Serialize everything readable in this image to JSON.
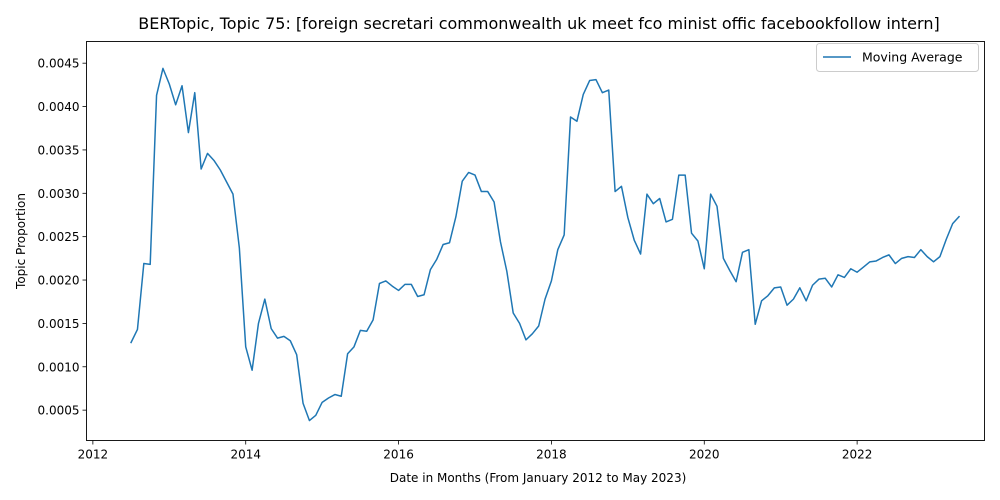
{
  "chart_data": {
    "type": "line",
    "title": "BERTopic, Topic 75: [foreign secretari commonwealth uk meet fco minist offic facebookfollow intern]",
    "xlabel": "Date in Months (From January 2012 to May 2023)",
    "ylabel": "Topic Proportion",
    "xlim": [
      "2011-12-01",
      "2023-09-01"
    ],
    "ylim": [
      0.00015,
      0.00475
    ],
    "x_ticks": [
      "2012",
      "2014",
      "2016",
      "2018",
      "2020",
      "2022"
    ],
    "y_ticks": [
      "0.0005",
      "0.0010",
      "0.0015",
      "0.0020",
      "0.0025",
      "0.0030",
      "0.0035",
      "0.0040",
      "0.0045"
    ],
    "legend": {
      "position": "top-right",
      "entries": [
        "Moving Average"
      ]
    },
    "grid": false,
    "colors": {
      "line": "#1f77b4"
    },
    "series": [
      {
        "name": "Moving Average",
        "x": [
          "2012-07",
          "2012-08",
          "2012-09",
          "2012-10",
          "2012-11",
          "2012-12",
          "2013-01",
          "2013-02",
          "2013-03",
          "2013-04",
          "2013-05",
          "2013-06",
          "2013-07",
          "2013-08",
          "2013-09",
          "2013-10",
          "2013-11",
          "2013-12",
          "2014-01",
          "2014-02",
          "2014-03",
          "2014-04",
          "2014-05",
          "2014-06",
          "2014-07",
          "2014-08",
          "2014-09",
          "2014-10",
          "2014-11",
          "2014-12",
          "2015-01",
          "2015-02",
          "2015-03",
          "2015-04",
          "2015-05",
          "2015-06",
          "2015-07",
          "2015-08",
          "2015-09",
          "2015-10",
          "2015-11",
          "2015-12",
          "2016-01",
          "2016-02",
          "2016-03",
          "2016-04",
          "2016-05",
          "2016-06",
          "2016-07",
          "2016-08",
          "2016-09",
          "2016-10",
          "2016-11",
          "2016-12",
          "2017-01",
          "2017-02",
          "2017-03",
          "2017-04",
          "2017-05",
          "2017-06",
          "2017-07",
          "2017-08",
          "2017-09",
          "2017-10",
          "2017-11",
          "2017-12",
          "2018-01",
          "2018-02",
          "2018-03",
          "2018-04",
          "2018-05",
          "2018-06",
          "2018-07",
          "2018-08",
          "2018-09",
          "2018-10",
          "2018-11",
          "2018-12",
          "2019-01",
          "2019-02",
          "2019-03",
          "2019-04",
          "2019-05",
          "2019-06",
          "2019-07",
          "2019-08",
          "2019-09",
          "2019-10",
          "2019-11",
          "2019-12",
          "2020-01",
          "2020-02",
          "2020-03",
          "2020-04",
          "2020-05",
          "2020-06",
          "2020-07",
          "2020-08",
          "2020-09",
          "2020-10",
          "2020-11",
          "2020-12",
          "2021-01",
          "2021-02",
          "2021-03",
          "2021-04",
          "2021-05",
          "2021-06",
          "2021-07",
          "2021-08",
          "2021-09",
          "2021-10",
          "2021-11",
          "2021-12",
          "2022-01",
          "2022-02",
          "2022-03",
          "2022-04",
          "2022-05",
          "2022-06",
          "2022-07",
          "2022-08",
          "2022-09",
          "2022-10",
          "2022-11",
          "2022-12",
          "2023-01",
          "2023-02",
          "2023-03",
          "2023-04",
          "2023-05"
        ],
        "y": [
          0.00128,
          0.00143,
          0.00219,
          0.00218,
          0.00413,
          0.00444,
          0.00426,
          0.00402,
          0.00424,
          0.0037,
          0.00416,
          0.00328,
          0.00346,
          0.00338,
          0.00327,
          0.00313,
          0.00299,
          0.00237,
          0.00123,
          0.00096,
          0.0015,
          0.00178,
          0.00144,
          0.00133,
          0.00135,
          0.0013,
          0.00114,
          0.00058,
          0.00038,
          0.00044,
          0.00059,
          0.00064,
          0.00068,
          0.00066,
          0.00115,
          0.00123,
          0.00142,
          0.00141,
          0.00154,
          0.00196,
          0.00199,
          0.00193,
          0.00188,
          0.00195,
          0.00195,
          0.00181,
          0.00183,
          0.00212,
          0.00224,
          0.00241,
          0.00243,
          0.00273,
          0.00314,
          0.00324,
          0.00321,
          0.00302,
          0.00302,
          0.0029,
          0.00244,
          0.0021,
          0.00162,
          0.0015,
          0.00131,
          0.00138,
          0.00147,
          0.00178,
          0.00199,
          0.00235,
          0.00252,
          0.00388,
          0.00383,
          0.00414,
          0.0043,
          0.00431,
          0.00416,
          0.00419,
          0.00302,
          0.00308,
          0.00272,
          0.00246,
          0.0023,
          0.00299,
          0.00288,
          0.00294,
          0.00267,
          0.0027,
          0.00321,
          0.00321,
          0.00254,
          0.00245,
          0.00213,
          0.00299,
          0.00285,
          0.00225,
          0.00211,
          0.00198,
          0.00232,
          0.00235,
          0.00149,
          0.00176,
          0.00182,
          0.00191,
          0.00192,
          0.00171,
          0.00178,
          0.00191,
          0.00176,
          0.00194,
          0.00201,
          0.00202,
          0.00192,
          0.00206,
          0.00203,
          0.00213,
          0.00209,
          0.00215,
          0.00221,
          0.00222,
          0.00226,
          0.00229,
          0.00219,
          0.00225,
          0.00227,
          0.00226,
          0.00235,
          0.00227,
          0.00221,
          0.00227,
          0.00247,
          0.00265,
          0.00273
        ]
      }
    ]
  }
}
